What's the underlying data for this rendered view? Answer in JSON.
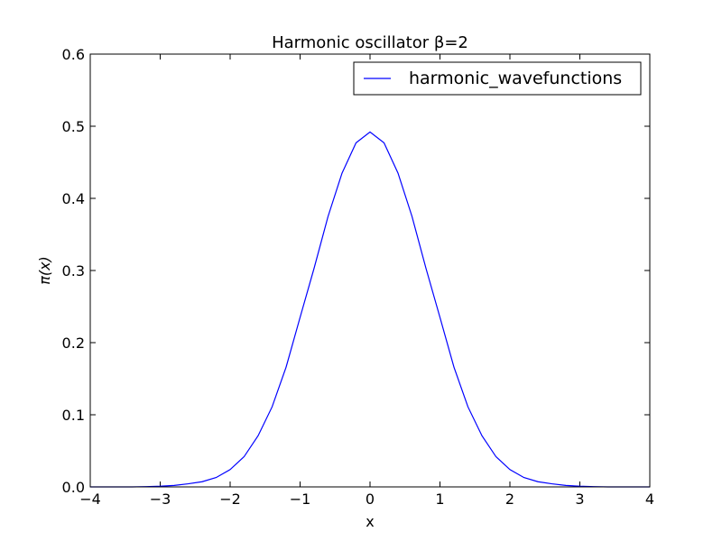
{
  "chart_data": {
    "type": "line",
    "title": "Harmonic oscillator β=2",
    "xlabel": "x",
    "ylabel": "π(x)",
    "xlim": [
      -4,
      4
    ],
    "ylim": [
      0,
      0.6
    ],
    "xticks": [
      -4,
      -3,
      -2,
      -1,
      0,
      1,
      2,
      3,
      4
    ],
    "yticks": [
      0.0,
      0.1,
      0.2,
      0.3,
      0.4,
      0.5,
      0.6
    ],
    "xtick_labels": [
      "−4",
      "−3",
      "−2",
      "−1",
      "0",
      "1",
      "2",
      "3",
      "4"
    ],
    "ytick_labels": [
      "0.0",
      "0.1",
      "0.2",
      "0.3",
      "0.4",
      "0.5",
      "0.6"
    ],
    "grid": false,
    "legend_position": "upper right",
    "series": [
      {
        "name": "harmonic_wavefunctions",
        "color": "#0000ff",
        "x": [
          -4.0,
          -3.8,
          -3.6,
          -3.4,
          -3.2,
          -3.0,
          -2.8,
          -2.6,
          -2.4,
          -2.2,
          -2.0,
          -1.8,
          -1.6,
          -1.4,
          -1.2,
          -1.0,
          -0.8,
          -0.6,
          -0.4,
          -0.2,
          0.0,
          0.2,
          0.4,
          0.6,
          0.8,
          1.0,
          1.2,
          1.4,
          1.6,
          1.8,
          2.0,
          2.2,
          2.4,
          2.6,
          2.8,
          3.0,
          3.2,
          3.4,
          3.6,
          3.8,
          4.0
        ],
        "y": [
          0.0,
          0.0,
          0.0,
          0.0,
          0.0004,
          0.0009,
          0.002,
          0.0043,
          0.0072,
          0.013,
          0.024,
          0.042,
          0.071,
          0.111,
          0.166,
          0.235,
          0.303,
          0.375,
          0.435,
          0.477,
          0.492,
          0.477,
          0.435,
          0.375,
          0.303,
          0.235,
          0.166,
          0.111,
          0.071,
          0.042,
          0.024,
          0.013,
          0.0072,
          0.0043,
          0.002,
          0.0009,
          0.0004,
          0.0,
          0.0,
          0.0,
          0.0
        ]
      }
    ]
  }
}
